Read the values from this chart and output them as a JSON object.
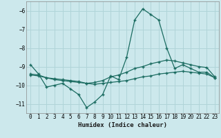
{
  "xlabel": "Humidex (Indice chaleur)",
  "bg_color": "#cce8ec",
  "grid_color": "#b0d4d8",
  "line_color": "#1a6b60",
  "xlim": [
    -0.5,
    23.5
  ],
  "ylim": [
    -11.5,
    -5.5
  ],
  "yticks": [
    -11,
    -10,
    -9,
    -8,
    -7,
    -6
  ],
  "xticks": [
    0,
    1,
    2,
    3,
    4,
    5,
    6,
    7,
    8,
    9,
    10,
    11,
    12,
    13,
    14,
    15,
    16,
    17,
    18,
    19,
    20,
    21,
    22,
    23
  ],
  "line1_x": [
    0,
    1,
    2,
    3,
    4,
    5,
    6,
    7,
    8,
    9,
    10,
    11,
    12,
    13,
    14,
    15,
    16,
    17,
    18,
    19,
    20,
    21,
    22,
    23
  ],
  "line1_y": [
    -8.9,
    -9.4,
    -10.1,
    -10.0,
    -9.9,
    -10.2,
    -10.5,
    -11.2,
    -10.9,
    -10.5,
    -9.5,
    -9.7,
    -8.5,
    -6.5,
    -5.9,
    -6.2,
    -6.5,
    -8.0,
    -9.1,
    -8.9,
    -9.1,
    -9.3,
    -9.3,
    -9.6
  ],
  "line2_x": [
    0,
    1,
    2,
    3,
    4,
    5,
    6,
    7,
    8,
    9,
    10,
    11,
    12,
    13,
    14,
    15,
    16,
    17,
    18,
    19,
    20,
    21,
    22,
    23
  ],
  "line2_y": [
    -9.4,
    -9.45,
    -9.6,
    -9.7,
    -9.75,
    -9.8,
    -9.85,
    -9.9,
    -9.85,
    -9.75,
    -9.55,
    -9.45,
    -9.3,
    -9.1,
    -9.0,
    -8.85,
    -8.75,
    -8.65,
    -8.7,
    -8.8,
    -8.9,
    -9.0,
    -9.05,
    -9.55
  ],
  "line3_x": [
    0,
    1,
    2,
    3,
    4,
    5,
    6,
    7,
    8,
    9,
    10,
    11,
    12,
    13,
    14,
    15,
    16,
    17,
    18,
    19,
    20,
    21,
    22,
    23
  ],
  "line3_y": [
    -9.45,
    -9.5,
    -9.6,
    -9.65,
    -9.7,
    -9.75,
    -9.8,
    -9.9,
    -9.95,
    -9.9,
    -9.85,
    -9.8,
    -9.75,
    -9.65,
    -9.55,
    -9.5,
    -9.4,
    -9.35,
    -9.3,
    -9.25,
    -9.3,
    -9.35,
    -9.4,
    -9.6
  ]
}
